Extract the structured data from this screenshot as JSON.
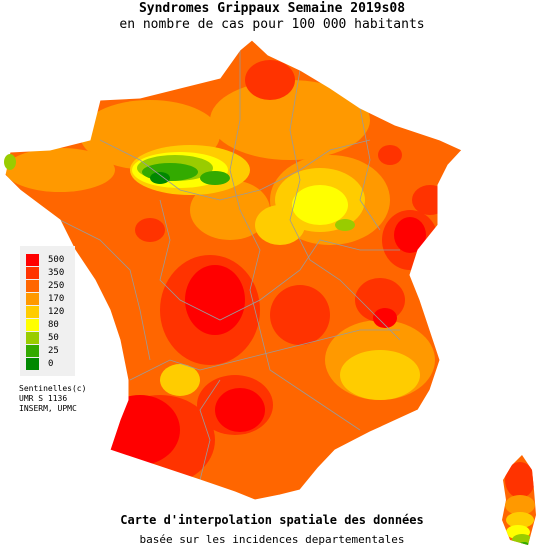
{
  "header": {
    "title": "Syndromes Grippaux Semaine 2019s08",
    "subtitle": "en nombre de cas pour 100 000 habitants"
  },
  "legend": {
    "items": [
      {
        "label": "500",
        "color": "#ff0000"
      },
      {
        "label": "350",
        "color": "#ff3300"
      },
      {
        "label": "250",
        "color": "#ff6600"
      },
      {
        "label": "170",
        "color": "#ff9900"
      },
      {
        "label": "120",
        "color": "#ffcc00"
      },
      {
        "label": "80",
        "color": "#ffff00"
      },
      {
        "label": "50",
        "color": "#99cc00"
      },
      {
        "label": "25",
        "color": "#33aa00"
      },
      {
        "label": "0",
        "color": "#008800"
      }
    ]
  },
  "credits": [
    "Sentinelles(c)",
    "UMR S 1136",
    "INSERM, UPMC"
  ],
  "footer": {
    "caption": "Carte d'interpolation spatiale des données",
    "subcaption": "basée sur les incidences departementales"
  }
}
